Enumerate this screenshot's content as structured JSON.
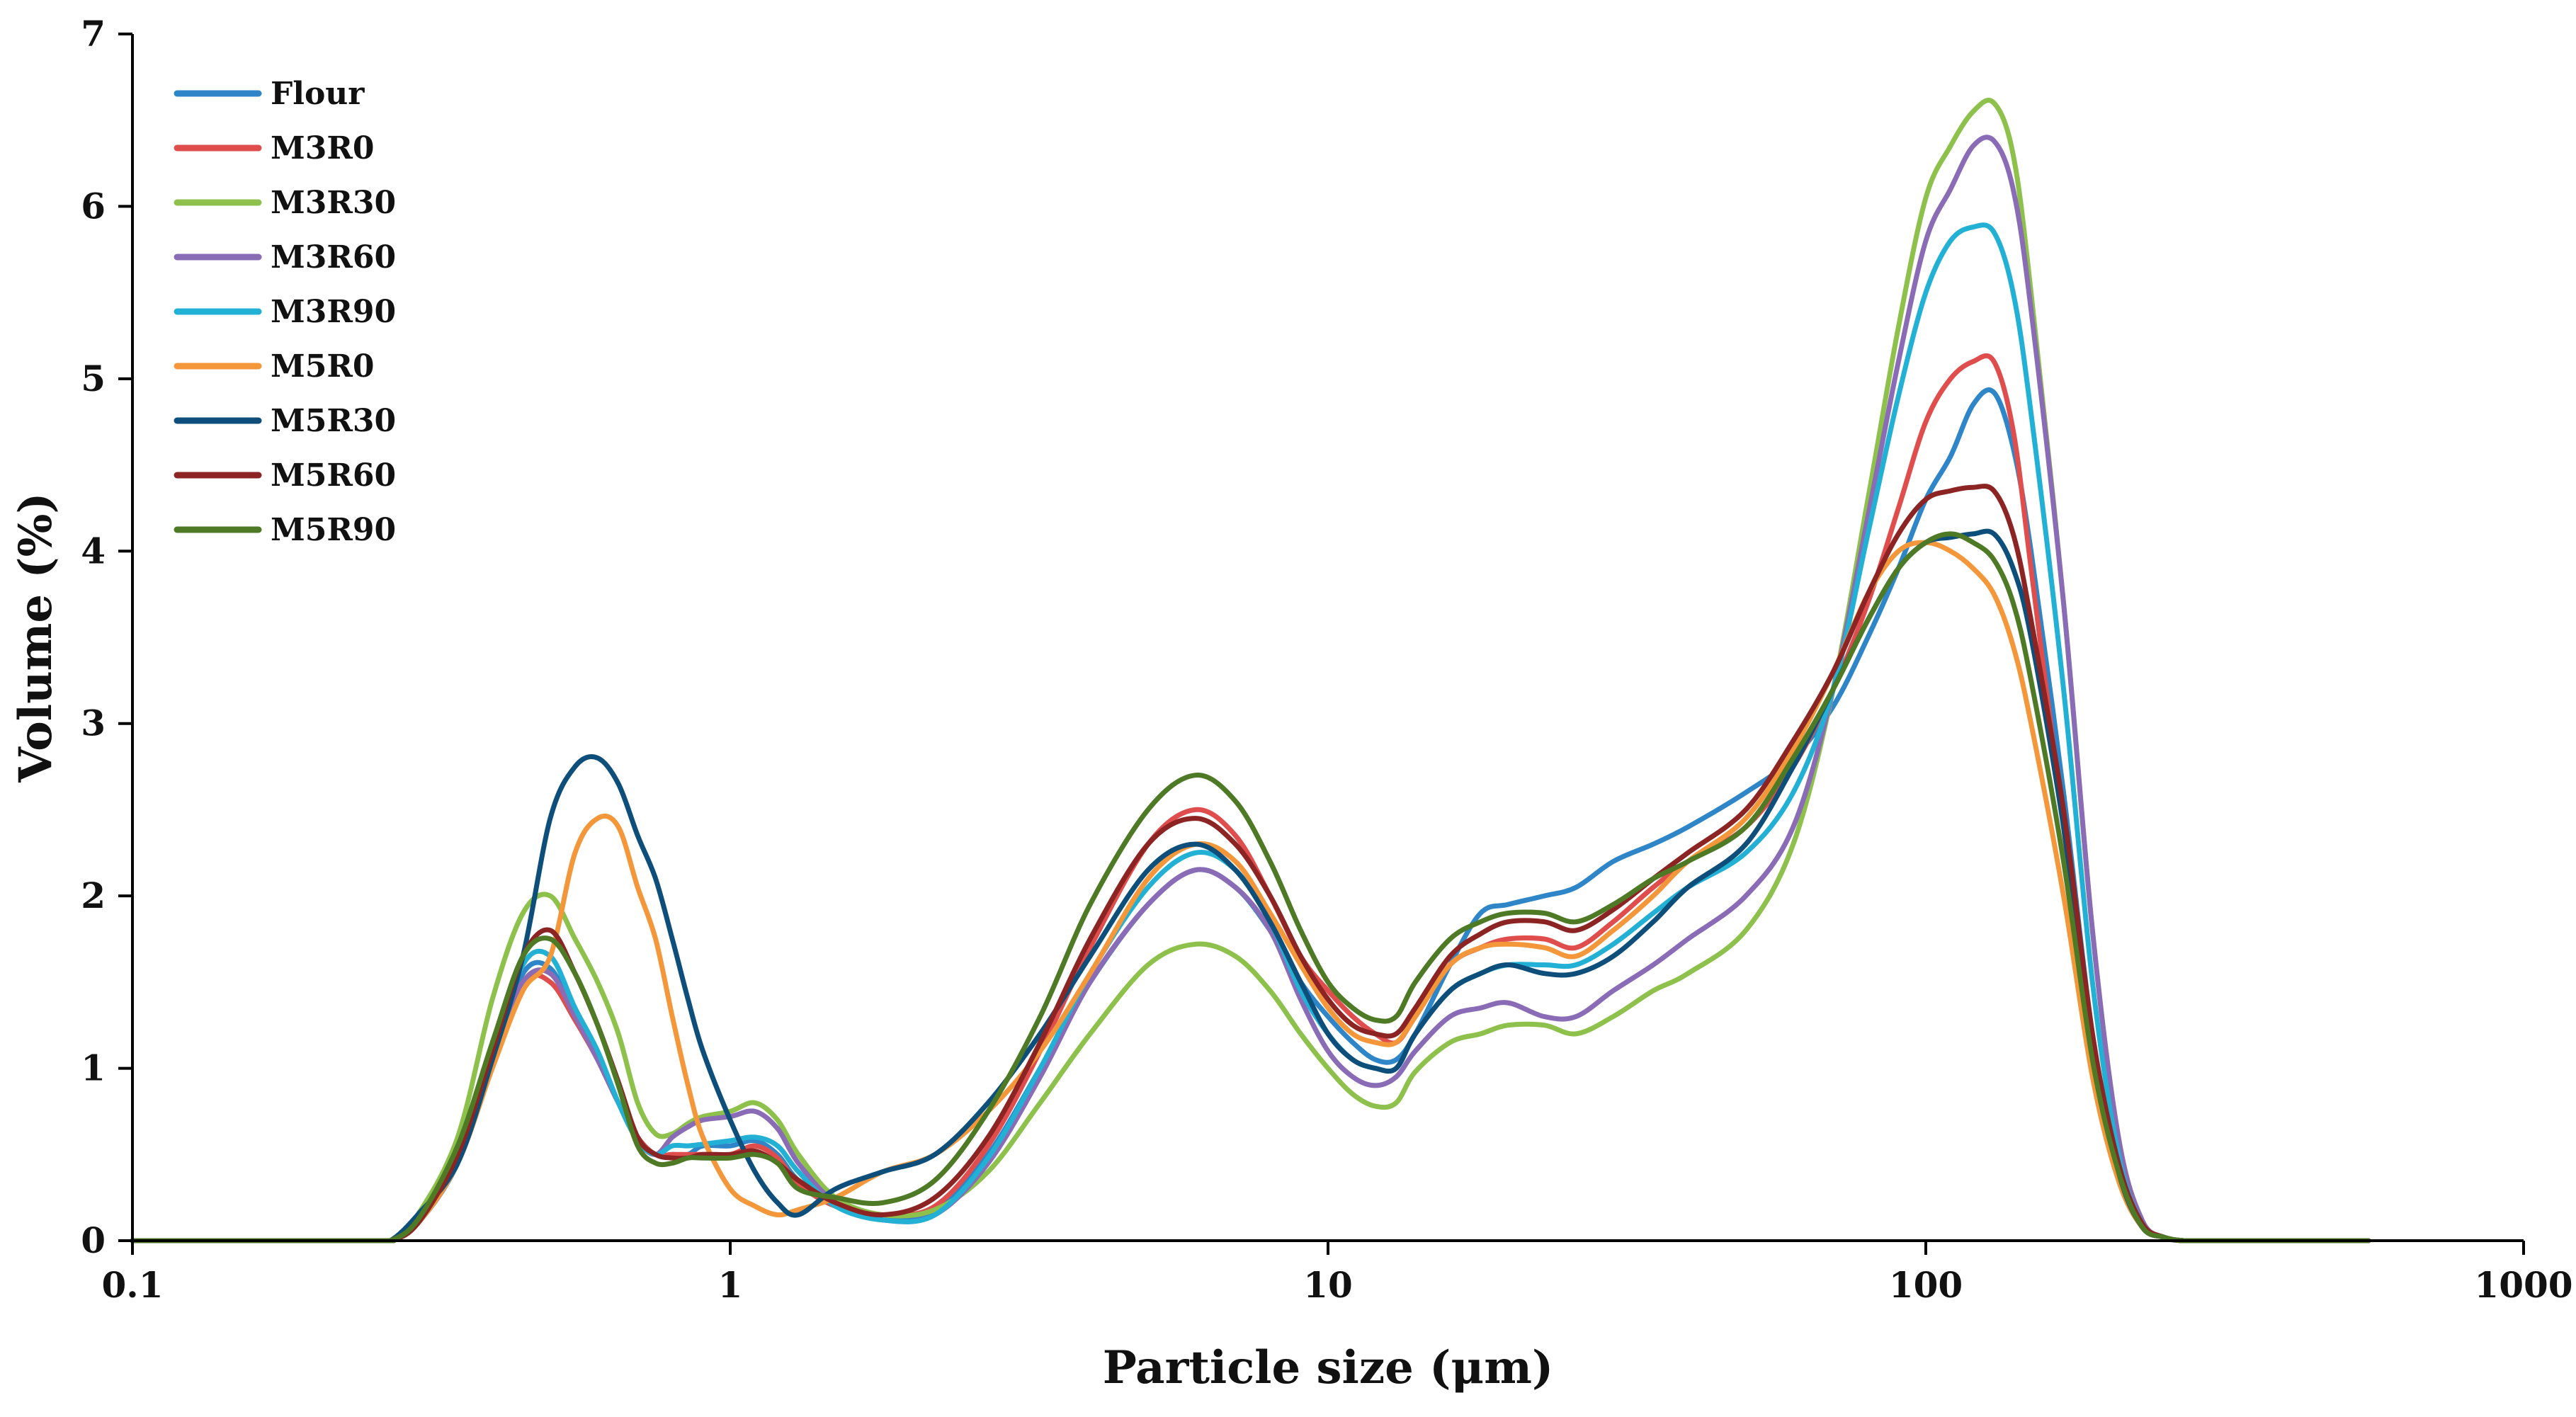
{
  "chart_data": {
    "type": "line",
    "title": "",
    "xlabel": "Particle size (μm)",
    "ylabel": "Volume (%)",
    "x_scale": "log",
    "xlim": [
      0.1,
      1000
    ],
    "ylim": [
      0,
      7
    ],
    "x_ticks": [
      0.1,
      1,
      10,
      100,
      1000
    ],
    "x_tick_labels": [
      "0.1",
      "1",
      "10",
      "100",
      "1000"
    ],
    "y_ticks": [
      0,
      1,
      2,
      3,
      4,
      5,
      6,
      7
    ],
    "y_tick_labels": [
      "0",
      "1",
      "2",
      "3",
      "4",
      "5",
      "6",
      "7"
    ],
    "legend_position": "top-left",
    "grid": false,
    "x": [
      0.1,
      0.25,
      0.27,
      0.3,
      0.35,
      0.4,
      0.45,
      0.5,
      0.55,
      0.6,
      0.65,
      0.7,
      0.75,
      0.8,
      0.85,
      0.9,
      1.0,
      1.1,
      1.2,
      1.3,
      1.5,
      1.8,
      2.2,
      2.7,
      3.3,
      4.0,
      5.0,
      6.0,
      7.0,
      8.0,
      9.0,
      10,
      11,
      12,
      13,
      14,
      16,
      18,
      20,
      23,
      26,
      30,
      35,
      40,
      50,
      60,
      70,
      80,
      90,
      100,
      110,
      120,
      130,
      140,
      150,
      170,
      190,
      210,
      230,
      250,
      270,
      300,
      550
    ],
    "series": [
      {
        "name": "Flour",
        "color": "#2E86C8",
        "values": [
          0,
          0,
          0,
          0.1,
          0.45,
          1.05,
          1.55,
          1.58,
          1.3,
          1.05,
          0.8,
          0.6,
          0.5,
          0.5,
          0.5,
          0.55,
          0.55,
          0.58,
          0.5,
          0.35,
          0.22,
          0.12,
          0.18,
          0.5,
          1.0,
          1.5,
          1.95,
          2.15,
          2.05,
          1.8,
          1.5,
          1.3,
          1.15,
          1.05,
          1.05,
          1.2,
          1.6,
          1.9,
          1.95,
          2.0,
          2.05,
          2.2,
          2.3,
          2.4,
          2.6,
          2.8,
          3.1,
          3.5,
          3.9,
          4.3,
          4.55,
          4.85,
          4.92,
          4.6,
          4.0,
          2.6,
          1.2,
          0.45,
          0.1,
          0.02,
          0,
          0,
          0
        ]
      },
      {
        "name": "M3R0",
        "color": "#E04D4D",
        "values": [
          0,
          0,
          0,
          0.1,
          0.45,
          1.05,
          1.5,
          1.5,
          1.28,
          1.05,
          0.8,
          0.6,
          0.5,
          0.5,
          0.5,
          0.5,
          0.5,
          0.55,
          0.48,
          0.33,
          0.2,
          0.15,
          0.2,
          0.55,
          1.1,
          1.7,
          2.3,
          2.5,
          2.35,
          2.0,
          1.65,
          1.45,
          1.3,
          1.2,
          1.15,
          1.3,
          1.6,
          1.7,
          1.75,
          1.75,
          1.7,
          1.85,
          2.05,
          2.2,
          2.4,
          2.75,
          3.2,
          3.7,
          4.25,
          4.75,
          5.0,
          5.1,
          5.1,
          4.7,
          3.9,
          2.4,
          1.1,
          0.4,
          0.08,
          0.02,
          0,
          0,
          0
        ]
      },
      {
        "name": "M3R30",
        "color": "#8DC14B",
        "values": [
          0,
          0,
          0,
          0.15,
          0.6,
          1.4,
          1.9,
          2.0,
          1.75,
          1.5,
          1.2,
          0.8,
          0.62,
          0.62,
          0.68,
          0.72,
          0.75,
          0.8,
          0.7,
          0.5,
          0.25,
          0.15,
          0.18,
          0.4,
          0.8,
          1.2,
          1.6,
          1.72,
          1.65,
          1.45,
          1.2,
          1.0,
          0.85,
          0.78,
          0.8,
          0.98,
          1.15,
          1.2,
          1.25,
          1.25,
          1.2,
          1.3,
          1.45,
          1.55,
          1.8,
          2.3,
          3.2,
          4.3,
          5.3,
          6.05,
          6.35,
          6.55,
          6.6,
          6.3,
          5.5,
          3.7,
          1.8,
          0.6,
          0.12,
          0.02,
          0,
          0,
          0
        ]
      },
      {
        "name": "M3R60",
        "color": "#8A6BB5",
        "values": [
          0,
          0,
          0,
          0.1,
          0.45,
          1.05,
          1.5,
          1.55,
          1.3,
          1.05,
          0.8,
          0.58,
          0.5,
          0.6,
          0.66,
          0.7,
          0.72,
          0.75,
          0.65,
          0.45,
          0.22,
          0.12,
          0.15,
          0.45,
          0.95,
          1.5,
          1.95,
          2.15,
          2.05,
          1.8,
          1.4,
          1.1,
          0.95,
          0.9,
          0.95,
          1.1,
          1.3,
          1.35,
          1.38,
          1.3,
          1.3,
          1.45,
          1.6,
          1.75,
          2.0,
          2.4,
          3.2,
          4.2,
          5.1,
          5.8,
          6.1,
          6.35,
          6.38,
          6.1,
          5.4,
          3.7,
          1.8,
          0.6,
          0.12,
          0.02,
          0,
          0,
          0
        ]
      },
      {
        "name": "M3R90",
        "color": "#22B1D4",
        "values": [
          0,
          0,
          0,
          0.1,
          0.45,
          1.05,
          1.6,
          1.65,
          1.35,
          1.1,
          0.8,
          0.58,
          0.5,
          0.55,
          0.55,
          0.56,
          0.58,
          0.6,
          0.55,
          0.4,
          0.2,
          0.12,
          0.15,
          0.48,
          1.0,
          1.55,
          2.05,
          2.25,
          2.15,
          1.85,
          1.45,
          1.2,
          1.05,
          1.0,
          1.0,
          1.2,
          1.45,
          1.55,
          1.6,
          1.6,
          1.6,
          1.72,
          1.9,
          2.05,
          2.25,
          2.6,
          3.2,
          4.1,
          4.9,
          5.5,
          5.8,
          5.88,
          5.85,
          5.5,
          4.8,
          3.2,
          1.5,
          0.5,
          0.1,
          0.02,
          0,
          0,
          0
        ]
      },
      {
        "name": "M5R0",
        "color": "#F3973A",
        "values": [
          0,
          0,
          0,
          0.1,
          0.45,
          1.0,
          1.45,
          1.65,
          2.25,
          2.45,
          2.4,
          2.05,
          1.75,
          1.3,
          0.9,
          0.6,
          0.3,
          0.2,
          0.15,
          0.18,
          0.25,
          0.4,
          0.5,
          0.75,
          1.1,
          1.55,
          2.1,
          2.3,
          2.2,
          1.9,
          1.6,
          1.35,
          1.2,
          1.15,
          1.15,
          1.3,
          1.6,
          1.7,
          1.72,
          1.7,
          1.65,
          1.8,
          2.0,
          2.2,
          2.45,
          2.85,
          3.3,
          3.75,
          4.0,
          4.05,
          4.0,
          3.9,
          3.75,
          3.45,
          3.0,
          2.0,
          0.95,
          0.35,
          0.08,
          0.02,
          0,
          0,
          0
        ]
      },
      {
        "name": "M5R30",
        "color": "#0D4F7A",
        "values": [
          0,
          0,
          0,
          0.15,
          0.45,
          1.05,
          1.65,
          2.45,
          2.75,
          2.8,
          2.65,
          2.35,
          2.1,
          1.75,
          1.4,
          1.1,
          0.7,
          0.4,
          0.22,
          0.15,
          0.3,
          0.4,
          0.5,
          0.8,
          1.2,
          1.65,
          2.15,
          2.3,
          2.15,
          1.85,
          1.5,
          1.2,
          1.05,
          1.0,
          1.0,
          1.2,
          1.45,
          1.55,
          1.6,
          1.55,
          1.55,
          1.65,
          1.85,
          2.05,
          2.3,
          2.75,
          3.2,
          3.6,
          3.9,
          4.05,
          4.08,
          4.1,
          4.1,
          3.9,
          3.5,
          2.4,
          1.15,
          0.4,
          0.08,
          0.02,
          0,
          0,
          0
        ]
      },
      {
        "name": "M5R60",
        "color": "#8C2424",
        "values": [
          0,
          0,
          0,
          0.1,
          0.5,
          1.1,
          1.65,
          1.8,
          1.55,
          1.25,
          0.92,
          0.6,
          0.5,
          0.48,
          0.48,
          0.5,
          0.5,
          0.52,
          0.45,
          0.35,
          0.22,
          0.15,
          0.25,
          0.6,
          1.15,
          1.75,
          2.3,
          2.45,
          2.3,
          2.0,
          1.65,
          1.4,
          1.25,
          1.2,
          1.2,
          1.35,
          1.65,
          1.78,
          1.85,
          1.85,
          1.8,
          1.92,
          2.1,
          2.25,
          2.5,
          2.9,
          3.3,
          3.75,
          4.1,
          4.3,
          4.35,
          4.37,
          4.35,
          4.1,
          3.6,
          2.5,
          1.2,
          0.45,
          0.1,
          0.02,
          0,
          0,
          0
        ]
      },
      {
        "name": "M5R90",
        "color": "#4E7A26",
        "values": [
          0,
          0,
          0,
          0.12,
          0.55,
          1.15,
          1.65,
          1.75,
          1.55,
          1.25,
          0.9,
          0.55,
          0.45,
          0.45,
          0.48,
          0.48,
          0.48,
          0.5,
          0.45,
          0.3,
          0.25,
          0.22,
          0.35,
          0.75,
          1.3,
          1.95,
          2.5,
          2.7,
          2.55,
          2.2,
          1.8,
          1.5,
          1.35,
          1.28,
          1.3,
          1.5,
          1.75,
          1.85,
          1.9,
          1.9,
          1.85,
          1.95,
          2.1,
          2.2,
          2.4,
          2.8,
          3.2,
          3.6,
          3.9,
          4.05,
          4.1,
          4.05,
          3.95,
          3.7,
          3.25,
          2.2,
          1.05,
          0.4,
          0.08,
          0.02,
          0,
          0,
          0
        ]
      }
    ]
  }
}
